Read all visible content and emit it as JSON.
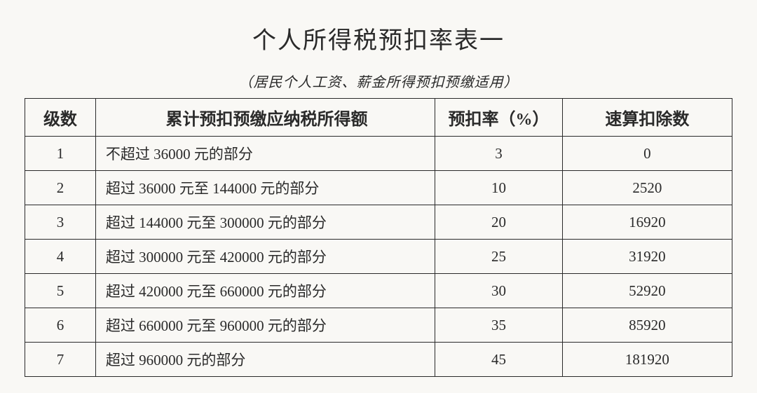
{
  "title": "个人所得税预扣率表一",
  "subtitle": "（居民个人工资、薪金所得预扣预缴适用）",
  "table": {
    "type": "table",
    "background_color": "#f9f8f5",
    "border_color": "#2a2a2a",
    "text_color": "#2a2a2a",
    "title_fontsize": 34,
    "subtitle_fontsize": 20,
    "header_fontsize": 24,
    "cell_fontsize": 21,
    "columns": [
      {
        "key": "level",
        "label": "级数",
        "width": "10%",
        "align": "center"
      },
      {
        "key": "range",
        "label": "累计预扣预缴应纳税所得额",
        "width": "48%",
        "align": "left"
      },
      {
        "key": "rate",
        "label": "预扣率（%）",
        "width": "18%",
        "align": "center"
      },
      {
        "key": "deduction",
        "label": "速算扣除数",
        "width": "24%",
        "align": "center"
      }
    ],
    "rows": [
      {
        "level": "1",
        "range": "不超过 36000 元的部分",
        "rate": "3",
        "deduction": "0"
      },
      {
        "level": "2",
        "range": "超过 36000 元至 144000 元的部分",
        "rate": "10",
        "deduction": "2520"
      },
      {
        "level": "3",
        "range": "超过 144000 元至 300000 元的部分",
        "rate": "20",
        "deduction": "16920"
      },
      {
        "level": "4",
        "range": "超过 300000 元至 420000 元的部分",
        "rate": "25",
        "deduction": "31920"
      },
      {
        "level": "5",
        "range": "超过 420000 元至 660000 元的部分",
        "rate": "30",
        "deduction": "52920"
      },
      {
        "level": "6",
        "range": "超过 660000 元至 960000 元的部分",
        "rate": "35",
        "deduction": "85920"
      },
      {
        "level": "7",
        "range": "超过 960000 元的部分",
        "rate": "45",
        "deduction": "181920"
      }
    ]
  }
}
